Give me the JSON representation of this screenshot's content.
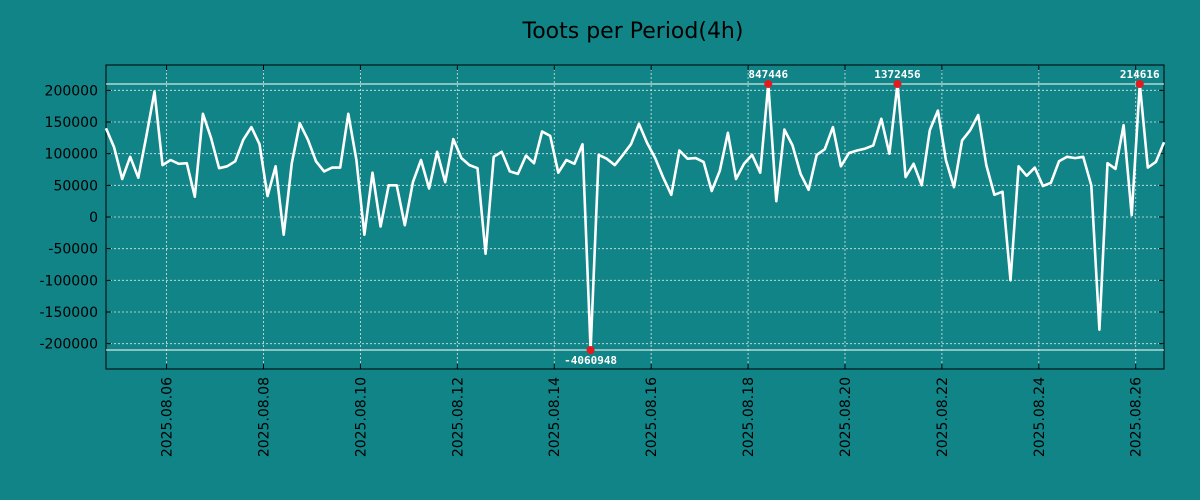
{
  "chart_data": {
    "type": "line",
    "title": "Toots per Period(4h)",
    "xlabel": "",
    "ylabel": "",
    "grid": true,
    "ylim": [
      -240000,
      240000
    ],
    "xlim": [
      "2025-08-04T18:00",
      "2025-08-26T14:00"
    ],
    "y_ticks": [
      200000,
      150000,
      100000,
      50000,
      0,
      -50000,
      -100000,
      -150000,
      -200000
    ],
    "y_tick_labels": [
      "200000",
      "150000",
      "100000",
      "50000",
      "0",
      "-50000",
      "-100000",
      "-150000",
      "-200000"
    ],
    "x_ticks": [
      "2025-08-06",
      "2025-08-08",
      "2025-08-10",
      "2025-08-12",
      "2025-08-14",
      "2025-08-16",
      "2025-08-18",
      "2025-08-20",
      "2025-08-22",
      "2025-08-24",
      "2025-08-26"
    ],
    "x_tick_labels": [
      "2025.08.06",
      "2025.08.08",
      "2025.08.10",
      "2025.08.12",
      "2025.08.14",
      "2025.08.16",
      "2025.08.18",
      "2025.08.20",
      "2025.08.22",
      "2025.08.24",
      "2025.08.26"
    ],
    "clip_lines": [
      210000,
      -210000
    ],
    "series": [
      {
        "name": "",
        "color": "#ffffff",
        "x": [
          "2025-08-04T18:00",
          "2025-08-04T22:00",
          "2025-08-05T02:00",
          "2025-08-05T06:00",
          "2025-08-05T10:00",
          "2025-08-05T14:00",
          "2025-08-05T18:00",
          "2025-08-05T22:00",
          "2025-08-06T02:00",
          "2025-08-06T06:00",
          "2025-08-06T10:00",
          "2025-08-06T14:00",
          "2025-08-06T18:00",
          "2025-08-06T22:00",
          "2025-08-07T02:00",
          "2025-08-07T06:00",
          "2025-08-07T10:00",
          "2025-08-07T14:00",
          "2025-08-07T18:00",
          "2025-08-07T22:00",
          "2025-08-08T02:00",
          "2025-08-08T06:00",
          "2025-08-08T10:00",
          "2025-08-08T14:00",
          "2025-08-08T18:00",
          "2025-08-08T22:00",
          "2025-08-09T02:00",
          "2025-08-09T06:00",
          "2025-08-09T10:00",
          "2025-08-09T14:00",
          "2025-08-09T18:00",
          "2025-08-09T22:00",
          "2025-08-10T02:00",
          "2025-08-10T06:00",
          "2025-08-10T10:00",
          "2025-08-10T14:00",
          "2025-08-10T18:00",
          "2025-08-10T22:00",
          "2025-08-11T02:00",
          "2025-08-11T06:00",
          "2025-08-11T10:00",
          "2025-08-11T14:00",
          "2025-08-11T18:00",
          "2025-08-11T22:00",
          "2025-08-12T02:00",
          "2025-08-12T06:00",
          "2025-08-12T10:00",
          "2025-08-12T14:00",
          "2025-08-12T18:00",
          "2025-08-12T22:00",
          "2025-08-13T02:00",
          "2025-08-13T06:00",
          "2025-08-13T10:00",
          "2025-08-13T14:00",
          "2025-08-13T18:00",
          "2025-08-13T22:00",
          "2025-08-14T02:00",
          "2025-08-14T06:00",
          "2025-08-14T10:00",
          "2025-08-14T14:00",
          "2025-08-14T18:00",
          "2025-08-14T22:00",
          "2025-08-15T02:00",
          "2025-08-15T06:00",
          "2025-08-15T10:00",
          "2025-08-15T14:00",
          "2025-08-15T18:00",
          "2025-08-15T22:00",
          "2025-08-16T02:00",
          "2025-08-16T06:00",
          "2025-08-16T10:00",
          "2025-08-16T14:00",
          "2025-08-16T18:00",
          "2025-08-16T22:00",
          "2025-08-17T02:00",
          "2025-08-17T06:00",
          "2025-08-17T10:00",
          "2025-08-17T14:00",
          "2025-08-17T18:00",
          "2025-08-17T22:00",
          "2025-08-18T02:00",
          "2025-08-18T06:00",
          "2025-08-18T10:00",
          "2025-08-18T14:00",
          "2025-08-18T18:00",
          "2025-08-18T22:00",
          "2025-08-19T02:00",
          "2025-08-19T06:00",
          "2025-08-19T10:00",
          "2025-08-19T14:00",
          "2025-08-19T18:00",
          "2025-08-19T22:00",
          "2025-08-20T02:00",
          "2025-08-20T06:00",
          "2025-08-20T10:00",
          "2025-08-20T14:00",
          "2025-08-20T18:00",
          "2025-08-20T22:00",
          "2025-08-21T02:00",
          "2025-08-21T06:00",
          "2025-08-21T10:00",
          "2025-08-21T14:00",
          "2025-08-21T18:00",
          "2025-08-21T22:00",
          "2025-08-22T02:00",
          "2025-08-22T06:00",
          "2025-08-22T10:00",
          "2025-08-22T14:00",
          "2025-08-22T18:00",
          "2025-08-22T22:00",
          "2025-08-23T02:00",
          "2025-08-23T06:00",
          "2025-08-23T10:00",
          "2025-08-23T14:00",
          "2025-08-23T18:00",
          "2025-08-23T22:00",
          "2025-08-24T02:00",
          "2025-08-24T06:00",
          "2025-08-24T10:00",
          "2025-08-24T14:00",
          "2025-08-24T18:00",
          "2025-08-24T22:00",
          "2025-08-25T02:00",
          "2025-08-25T06:00",
          "2025-08-25T10:00",
          "2025-08-25T14:00",
          "2025-08-25T18:00",
          "2025-08-25T22:00",
          "2025-08-26T02:00",
          "2025-08-26T06:00",
          "2025-08-26T10:00",
          "2025-08-26T14:00"
        ],
        "y": [
          140000,
          110000,
          60000,
          95000,
          62000,
          128000,
          198000,
          82000,
          90000,
          84000,
          85000,
          32000,
          163000,
          125000,
          77000,
          80000,
          88000,
          122000,
          142000,
          115000,
          33000,
          80000,
          -28000,
          85000,
          148000,
          122000,
          88000,
          72000,
          78000,
          78000,
          163000,
          90000,
          -28000,
          70000,
          -15000,
          50000,
          50000,
          -13000,
          55000,
          90000,
          45000,
          103000,
          55000,
          123000,
          93000,
          82000,
          77000,
          -58000,
          95000,
          103000,
          72000,
          68000,
          97000,
          85000,
          135000,
          128000,
          70000,
          90000,
          84000,
          115000,
          -210000,
          98000,
          92000,
          82000,
          98000,
          115000,
          147000,
          117000,
          93000,
          62000,
          35000,
          105000,
          92000,
          93000,
          87000,
          41000,
          73000,
          133000,
          60000,
          84000,
          98000,
          70000,
          210000,
          25000,
          138000,
          113000,
          68000,
          43000,
          98000,
          107000,
          142000,
          80000,
          101000,
          105000,
          108000,
          113000,
          155000,
          100000,
          210000,
          63000,
          84000,
          50000,
          137000,
          168000,
          90000,
          47000,
          121000,
          137000,
          161000,
          82000,
          35000,
          40000,
          -100000,
          80000,
          65000,
          78000,
          49000,
          54000,
          88000,
          95000,
          93000,
          95000,
          50000,
          -178000,
          85000,
          76000,
          145000,
          3000,
          210000,
          78000,
          87000,
          118000
        ]
      }
    ],
    "annotations": [
      {
        "x": "2025-08-14T18:00",
        "y": -210000,
        "label": "-4060948",
        "position": "below"
      },
      {
        "x": "2025-08-18T10:00",
        "y": 210000,
        "label": "847446",
        "position": "above"
      },
      {
        "x": "2025-08-21T02:00",
        "y": 210000,
        "label": "1372456",
        "position": "above"
      },
      {
        "x": "2025-08-26T02:00",
        "y": 210000,
        "label": "214616",
        "position": "above"
      }
    ]
  }
}
